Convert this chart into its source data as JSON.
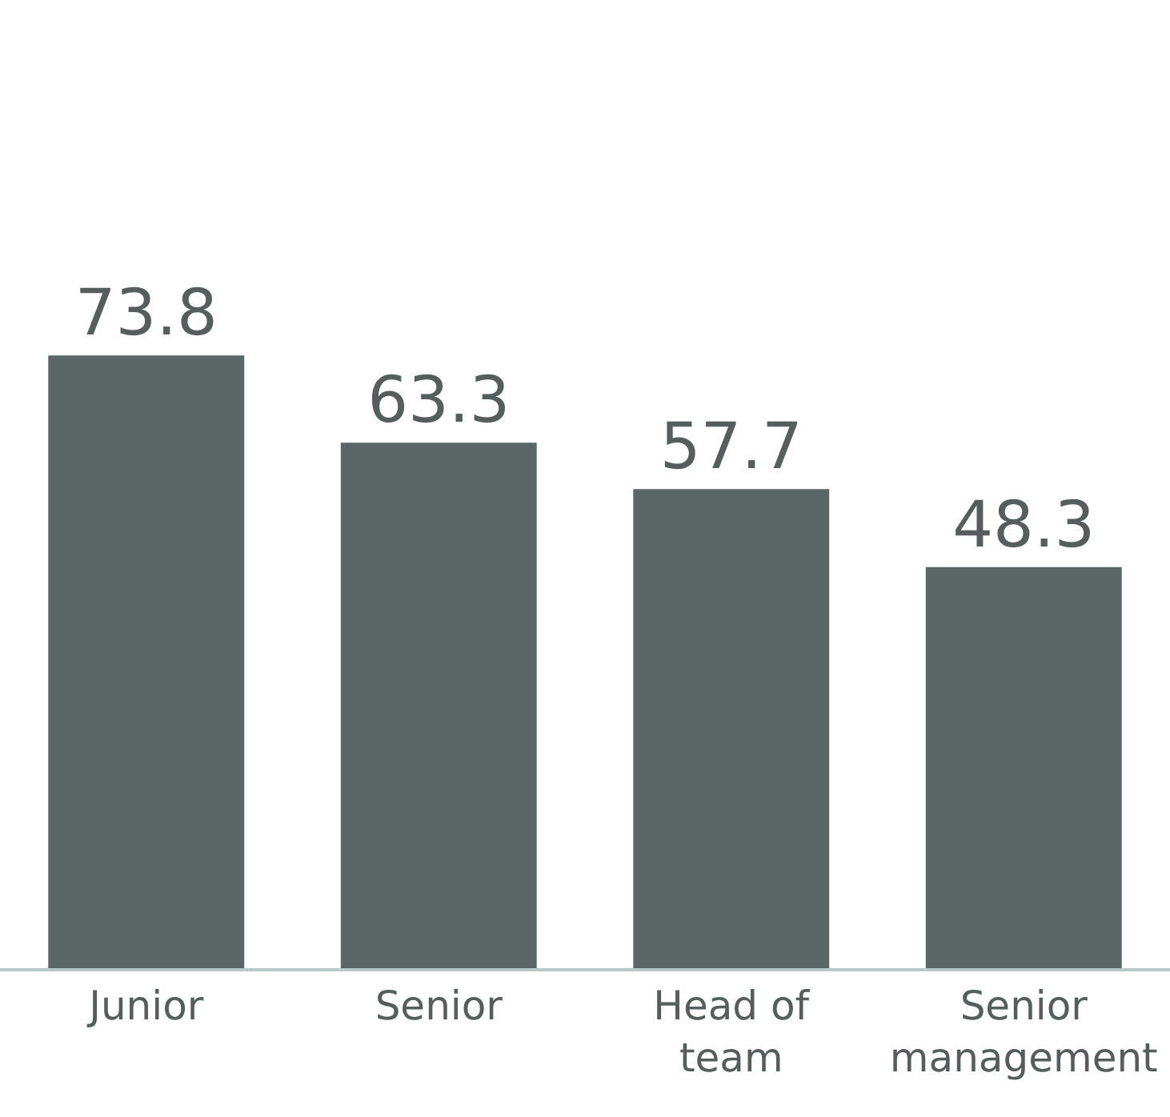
{
  "chart_data": {
    "type": "bar",
    "categories": [
      "Junior",
      "Senior",
      "Head of team",
      "Senior management"
    ],
    "values": [
      73.8,
      63.3,
      57.7,
      48.3
    ],
    "color": "#5a6766",
    "data_labels": true,
    "legend": false
  }
}
